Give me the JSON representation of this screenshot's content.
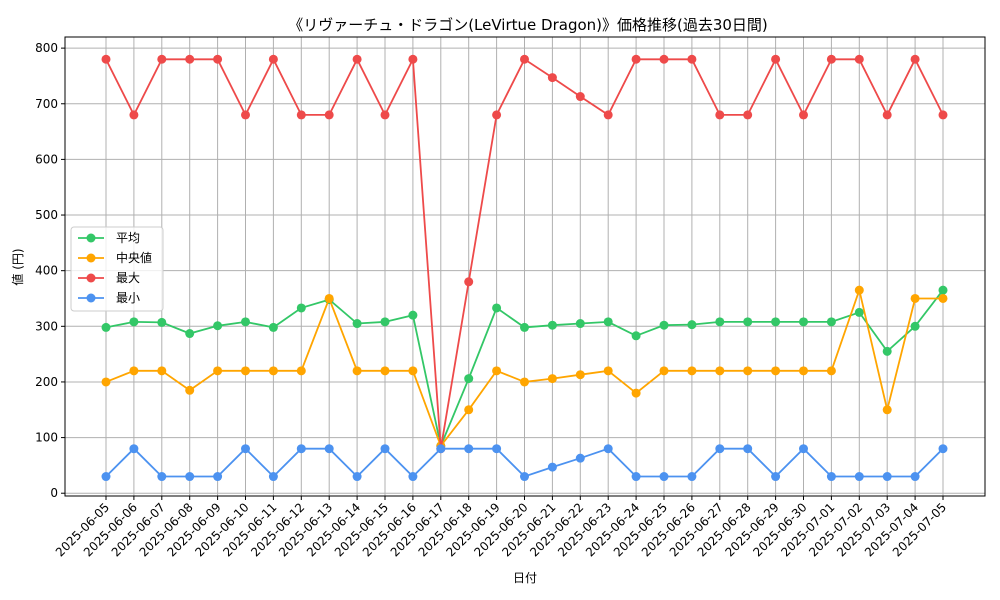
{
  "chart_data": {
    "type": "line",
    "title": "《リヴァーチュ・ドラゴン(LeVirtue Dragon)》価格推移(過去30日間)",
    "xlabel": "日付",
    "ylabel": "値 (円)",
    "ylim": [
      -5,
      820
    ],
    "yticks": [
      0,
      100,
      200,
      300,
      400,
      500,
      600,
      700,
      800
    ],
    "grid": true,
    "legend_position": "center-left",
    "categories": [
      "2025-06-05",
      "2025-06-06",
      "2025-06-07",
      "2025-06-08",
      "2025-06-09",
      "2025-06-10",
      "2025-06-11",
      "2025-06-12",
      "2025-06-13",
      "2025-06-14",
      "2025-06-15",
      "2025-06-16",
      "2025-06-17",
      "2025-06-18",
      "2025-06-19",
      "2025-06-20",
      "2025-06-21",
      "2025-06-22",
      "2025-06-23",
      "2025-06-24",
      "2025-06-25",
      "2025-06-26",
      "2025-06-27",
      "2025-06-28",
      "2025-06-29",
      "2025-06-30",
      "2025-07-01",
      "2025-07-02",
      "2025-07-03",
      "2025-07-04",
      "2025-07-05"
    ],
    "series": [
      {
        "name": "平均",
        "color": "#33c767",
        "values": [
          298,
          308,
          307,
          287,
          301,
          308,
          298,
          333,
          348,
          305,
          308,
          320,
          85,
          206,
          333,
          298,
          302,
          305,
          308,
          283,
          302,
          303,
          308,
          308,
          308,
          308,
          308,
          325,
          255,
          300,
          365
        ]
      },
      {
        "name": "中央値",
        "color": "#ffa500",
        "values": [
          200,
          220,
          220,
          185,
          220,
          220,
          220,
          220,
          350,
          220,
          220,
          220,
          85,
          150,
          220,
          200,
          206,
          213,
          220,
          180,
          220,
          220,
          220,
          220,
          220,
          220,
          220,
          365,
          150,
          350,
          350
        ]
      },
      {
        "name": "最大",
        "color": "#ee4a4a",
        "values": [
          780,
          680,
          780,
          780,
          780,
          680,
          780,
          680,
          680,
          780,
          680,
          780,
          80,
          380,
          680,
          780,
          747,
          713,
          680,
          780,
          780,
          780,
          680,
          680,
          780,
          680,
          780,
          780,
          680,
          780,
          680
        ]
      },
      {
        "name": "最小",
        "color": "#4c92f0",
        "values": [
          30,
          80,
          30,
          30,
          30,
          80,
          30,
          80,
          80,
          30,
          80,
          30,
          80,
          80,
          80,
          30,
          47,
          63,
          80,
          30,
          30,
          30,
          80,
          80,
          30,
          80,
          30,
          30,
          30,
          30,
          80
        ]
      }
    ]
  }
}
